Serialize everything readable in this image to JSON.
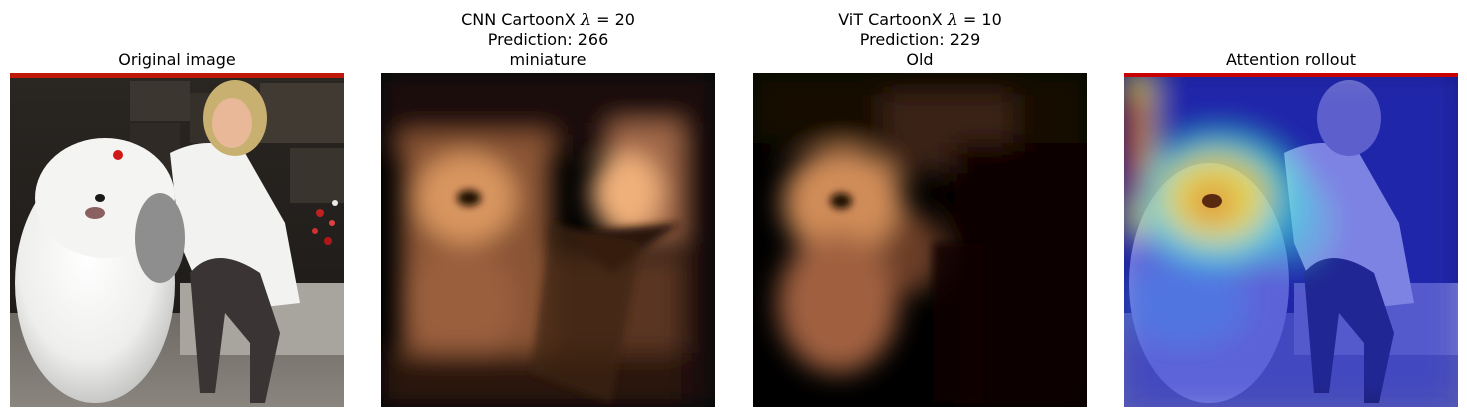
{
  "figure": {
    "panels": [
      {
        "id": "original",
        "title_lines": [
          "Original image"
        ],
        "image": "photo of a white sheepdog sitting beside a smiling blonde woman in a white jacket"
      },
      {
        "id": "cnn",
        "title_lines": [
          "CNN CartoonX λ = 20",
          "Prediction: 266",
          "miniature"
        ],
        "title_parts": {
          "prefix": "CNN CartoonX ",
          "symbol": "λ",
          "suffix": " = 20"
        },
        "image": "copper colormap explanation map"
      },
      {
        "id": "vit",
        "title_lines": [
          "ViT CartoonX λ = 10",
          "Prediction: 229",
          "Old"
        ],
        "title_parts": {
          "prefix": "ViT CartoonX ",
          "symbol": "λ",
          "suffix": " = 10"
        },
        "image": "copper colormap explanation map"
      },
      {
        "id": "rollout",
        "title_lines": [
          "Attention rollout"
        ],
        "image": "jet colormap attention overlay on photo"
      }
    ]
  },
  "colors": {
    "copper_bright": "#ffc890",
    "copper_mid": "#b07048",
    "jet_blue": "#2a32d0",
    "jet_red": "#c80000",
    "jet_yellow": "#f0e040"
  }
}
